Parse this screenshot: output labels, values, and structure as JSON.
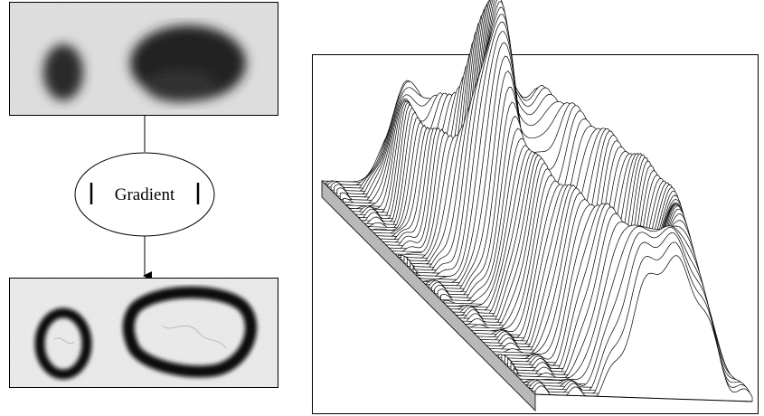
{
  "diagram": {
    "node_label": "Gradient"
  }
}
